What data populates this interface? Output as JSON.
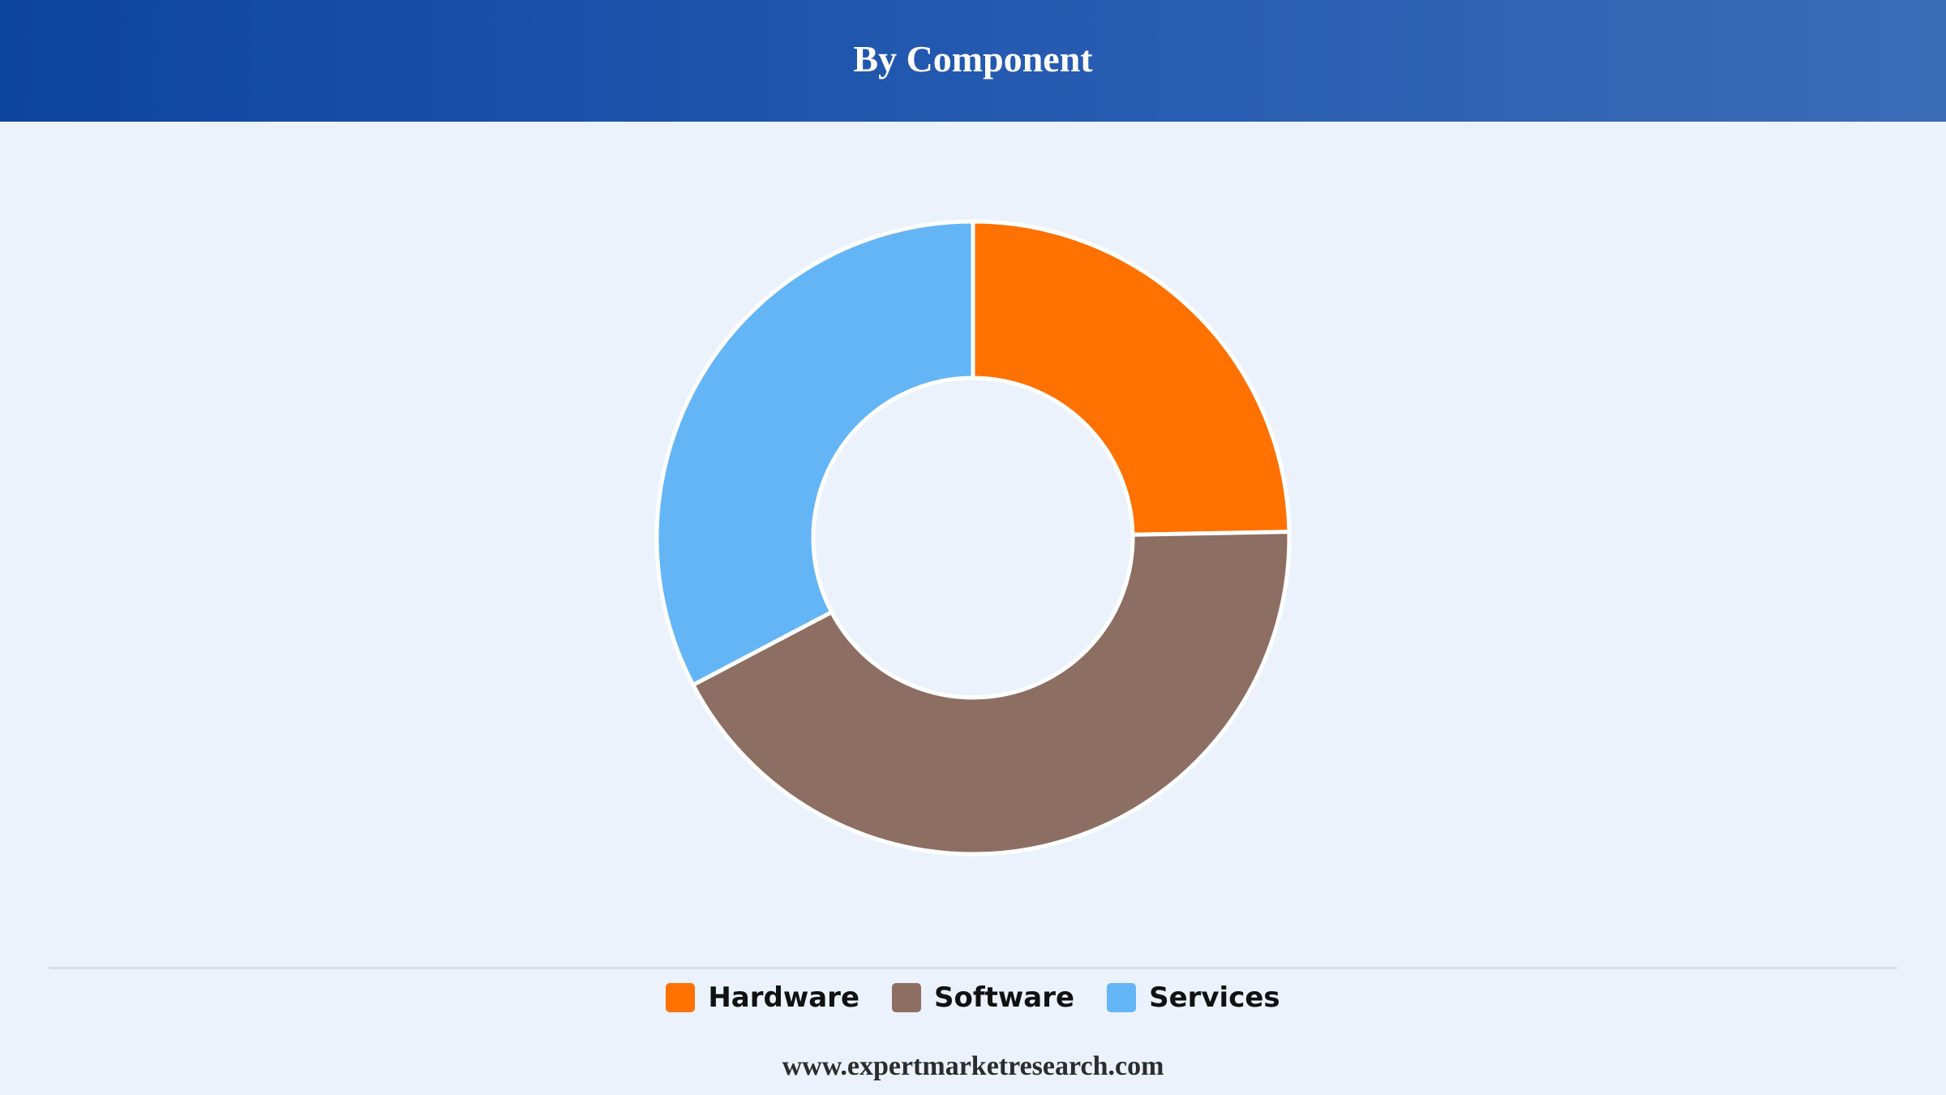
{
  "header": {
    "title": "By Component"
  },
  "chart_data": {
    "type": "pie",
    "title": "By Component",
    "donut": true,
    "categories": [
      "Hardware",
      "Software",
      "Services"
    ],
    "values": [
      24.7,
      42.6,
      32.7
    ],
    "colors": [
      "#ff7100",
      "#8d6e63",
      "#64b5f6"
    ],
    "legend": "bottom"
  },
  "legend": {
    "items": [
      {
        "label": "Hardware",
        "color": "#ff7100"
      },
      {
        "label": "Software",
        "color": "#8d6e63"
      },
      {
        "label": "Services",
        "color": "#64b5f6"
      }
    ]
  },
  "footer": {
    "url": "www.expertmarketresearch.com"
  }
}
